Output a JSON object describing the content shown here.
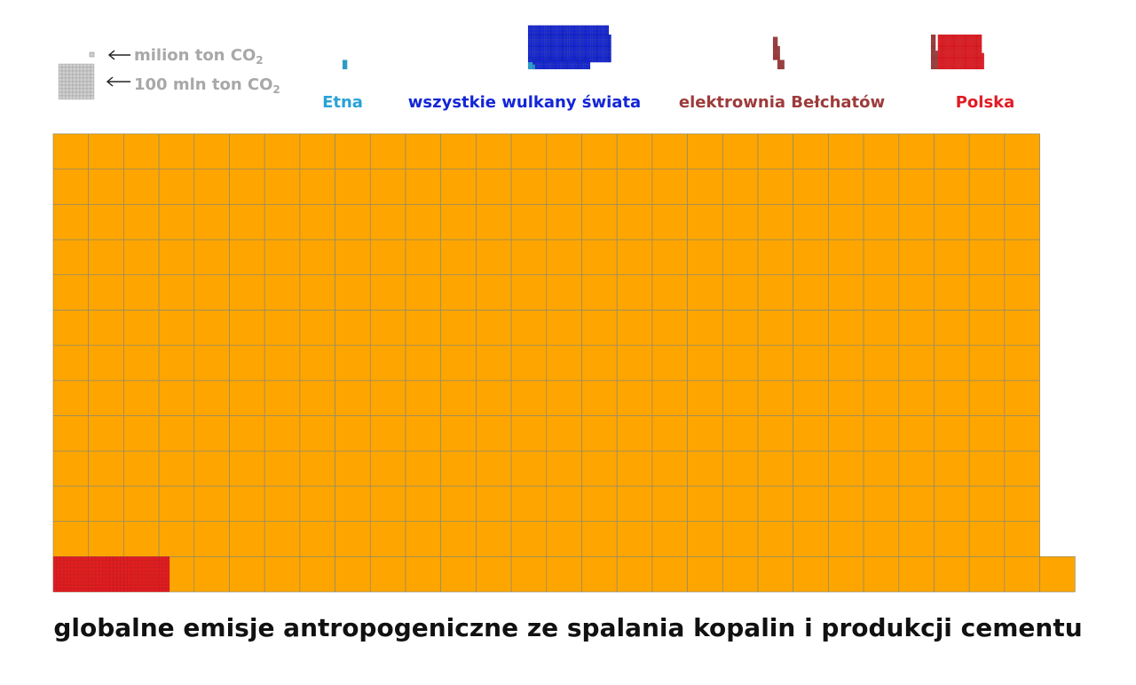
{
  "chart_data": {
    "type": "waffle",
    "unit_small": "milion ton CO",
    "unit_big": "100 mln ton CO",
    "unit_subscript": "2",
    "small_cell_value_mt": 1,
    "big_cell_value_mt": 100,
    "categories": [
      {
        "label": "Etna",
        "value_mt": 8,
        "color": "#29a3d6"
      },
      {
        "label": "wszystkie wulkany świata",
        "value_mt": 580,
        "color": "#1426d6",
        "inner_label": "Etna",
        "inner_value_mt": 8,
        "inner_color": "#29a3d6"
      },
      {
        "label": "elektrownia Bełchatów",
        "value_mt": 38,
        "color": "#9e3b3b"
      },
      {
        "label": "Polska",
        "value_mt": 330,
        "color": "#e01c24",
        "inner_label": "elektrownia Bełchatów",
        "inner_value_mt": 38,
        "inner_color": "#9e3b3b"
      }
    ],
    "main": {
      "label": "globalne emisje antropogeniczne ze spalania kopalin i produkcji cementu",
      "value_mt": 36500,
      "color": "#ffa500",
      "overlay_label": "Polska",
      "overlay_value_mt": 330,
      "overlay_color": "#e01c24"
    }
  }
}
